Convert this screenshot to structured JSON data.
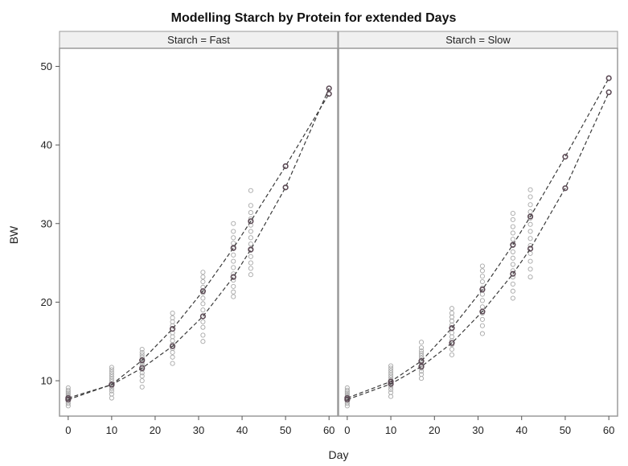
{
  "chart_data": {
    "type": "scatter",
    "title": "Modelling Starch by Protein for extended Days",
    "xlabel": "Day",
    "ylabel": "BW",
    "xlim": [
      -2,
      62
    ],
    "ylim": [
      5.5,
      52.3
    ],
    "x_ticks": [
      0,
      10,
      20,
      30,
      40,
      50,
      60
    ],
    "y_ticks": [
      10,
      20,
      30,
      40,
      50
    ],
    "panels": [
      {
        "label": "Starch = Fast",
        "observed": [
          {
            "x": 0,
            "y": [
              6.8,
              7.1,
              7.3,
              7.5,
              7.6,
              7.8,
              8.0,
              8.2,
              8.4,
              8.6,
              8.8,
              9.1
            ]
          },
          {
            "x": 10,
            "y": [
              7.8,
              8.3,
              8.7,
              9.0,
              9.3,
              9.6,
              9.9,
              10.2,
              10.5,
              10.8,
              11.1,
              11.4,
              11.7
            ]
          },
          {
            "x": 17,
            "y": [
              9.2,
              10.0,
              10.6,
              11.0,
              11.4,
              11.8,
              12.1,
              12.4,
              12.7,
              13.0,
              13.3,
              13.6,
              14.0
            ]
          },
          {
            "x": 24,
            "y": [
              12.2,
              13.0,
              13.6,
              14.1,
              14.6,
              15.1,
              15.6,
              16.1,
              16.6,
              17.0,
              17.5,
              18.0,
              18.6
            ]
          },
          {
            "x": 31,
            "y": [
              15.0,
              15.8,
              16.8,
              17.5,
              18.2,
              19.0,
              19.8,
              20.5,
              21.2,
              21.9,
              22.6,
              23.2,
              23.8
            ]
          },
          {
            "x": 38,
            "y": [
              20.7,
              21.3,
              22.0,
              22.8,
              23.6,
              24.4,
              25.2,
              26.0,
              26.8,
              27.5,
              28.2,
              29.0,
              30.0
            ]
          },
          {
            "x": 42,
            "y": [
              23.5,
              24.3,
              25.0,
              25.8,
              26.6,
              27.4,
              28.2,
              29.0,
              29.8,
              30.6,
              31.4,
              32.3,
              34.2
            ]
          }
        ],
        "fitted": [
          {
            "name": "",
            "x": [
              0,
              10,
              17,
              24,
              31,
              38,
              42,
              50,
              60
            ],
            "y": [
              7.8,
              9.5,
              12.6,
              16.6,
              21.4,
              26.9,
              30.3,
              37.3,
              46.5
            ]
          },
          {
            "name": "",
            "x": [
              0,
              10,
              17,
              24,
              31,
              38,
              42,
              50,
              60
            ],
            "y": [
              7.6,
              9.5,
              11.6,
              14.4,
              18.2,
              23.2,
              26.7,
              34.6,
              47.2
            ]
          }
        ]
      },
      {
        "label": "Starch = Slow",
        "observed": [
          {
            "x": 0,
            "y": [
              6.8,
              7.1,
              7.3,
              7.5,
              7.6,
              7.8,
              8.0,
              8.2,
              8.4,
              8.6,
              8.8,
              9.1
            ]
          },
          {
            "x": 10,
            "y": [
              8.0,
              8.5,
              8.9,
              9.2,
              9.5,
              9.8,
              10.1,
              10.4,
              10.7,
              11.0,
              11.3,
              11.6,
              11.9
            ]
          },
          {
            "x": 17,
            "y": [
              10.3,
              10.8,
              11.2,
              11.6,
              12.0,
              12.3,
              12.6,
              12.9,
              13.2,
              13.5,
              13.8,
              14.2,
              14.9
            ]
          },
          {
            "x": 24,
            "y": [
              13.3,
              14.0,
              14.6,
              15.1,
              15.6,
              16.1,
              16.6,
              17.1,
              17.6,
              18.1,
              18.6,
              19.2
            ]
          },
          {
            "x": 31,
            "y": [
              16.0,
              17.0,
              17.8,
              18.6,
              19.4,
              20.2,
              21.0,
              21.8,
              22.6,
              23.3,
              24.0,
              24.6
            ]
          },
          {
            "x": 38,
            "y": [
              20.5,
              21.4,
              22.3,
              23.2,
              24.0,
              24.8,
              25.6,
              26.4,
              27.2,
              28.0,
              28.8,
              29.6,
              30.5,
              31.3
            ]
          },
          {
            "x": 42,
            "y": [
              23.2,
              24.2,
              25.2,
              26.2,
              27.2,
              28.1,
              29.0,
              29.9,
              30.7,
              31.5,
              32.4,
              33.4,
              34.3
            ]
          }
        ],
        "fitted": [
          {
            "name": "",
            "x": [
              0,
              10,
              17,
              24,
              31,
              38,
              42,
              50,
              60
            ],
            "y": [
              7.8,
              9.9,
              12.5,
              16.7,
              21.6,
              27.3,
              30.9,
              38.5,
              48.5
            ]
          },
          {
            "name": "",
            "x": [
              0,
              10,
              17,
              24,
              31,
              38,
              42,
              50,
              60
            ],
            "y": [
              7.6,
              9.6,
              11.8,
              14.8,
              18.8,
              23.6,
              26.8,
              34.5,
              46.7
            ]
          }
        ]
      }
    ],
    "grid": false,
    "marker": "open-circle",
    "line_style": "dashed",
    "colors": {
      "observed": "#a8a8a8",
      "fitted_marker": "#5c4a55",
      "fitted_line": "#3a3a3a",
      "frame": "#9a9a9a",
      "strip_bg": "#f0f0f0"
    }
  }
}
